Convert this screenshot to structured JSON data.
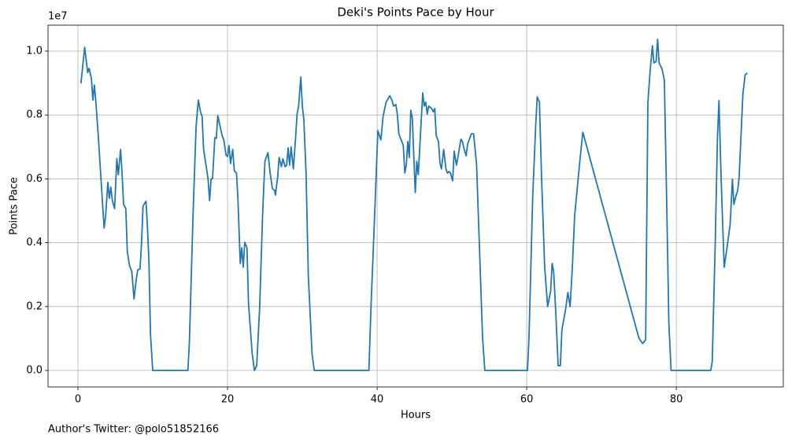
{
  "chart_data": {
    "type": "line",
    "title": "Deki's Points Pace by Hour",
    "x_label": "Hours",
    "y_label": "Points Pace",
    "y_offset_label": "1e7",
    "footnote": "Author's Twitter: @polo51852166",
    "color": "#1f77b4",
    "grid": true,
    "xlim": [
      -4,
      94.3
    ],
    "xticks": [
      0,
      20,
      40,
      60,
      80
    ],
    "ylim": [
      -517000,
      10813000
    ],
    "yticks": [
      {
        "value": 0,
        "label": "0.0"
      },
      {
        "value": 2000000,
        "label": "0.2"
      },
      {
        "value": 4000000,
        "label": "0.4"
      },
      {
        "value": 6000000,
        "label": "0.6"
      },
      {
        "value": 8000000,
        "label": "0.8"
      },
      {
        "value": 10000000,
        "label": "1.0"
      }
    ],
    "x": [
      0.4,
      0.9,
      1.3,
      1.5,
      1.8,
      2.0,
      2.2,
      2.4,
      2.7,
      3.3,
      3.5,
      3.7,
      4.0,
      4.2,
      4.4,
      4.6,
      4.9,
      5.2,
      5.4,
      5.7,
      5.9,
      6.1,
      6.4,
      6.6,
      6.9,
      7.2,
      7.5,
      7.8,
      8.0,
      8.3,
      8.5,
      8.7,
      9.1,
      9.3,
      9.5,
      9.7,
      10.0,
      14.7,
      14.9,
      15.4,
      15.8,
      16.1,
      16.4,
      16.6,
      16.8,
      17.2,
      17.4,
      17.6,
      17.8,
      18.0,
      18.3,
      18.5,
      18.7,
      19.1,
      19.3,
      19.5,
      19.8,
      20.0,
      20.2,
      20.4,
      20.7,
      20.9,
      21.2,
      21.4,
      21.7,
      21.9,
      22.1,
      22.3,
      22.6,
      22.8,
      23.3,
      23.6,
      23.9,
      24.3,
      24.7,
      25.0,
      25.4,
      25.7,
      26.0,
      26.3,
      26.4,
      26.7,
      26.9,
      27.2,
      27.4,
      27.7,
      27.9,
      28.1,
      28.3,
      28.5,
      28.8,
      29.1,
      29.3,
      29.5,
      29.8,
      30.0,
      30.2,
      30.5,
      30.8,
      31.3,
      31.6,
      38.9,
      39.2,
      39.6,
      40.1,
      40.5,
      40.8,
      41.2,
      41.7,
      42.0,
      42.2,
      42.5,
      42.7,
      42.9,
      43.3,
      43.5,
      43.7,
      43.9,
      44.1,
      44.3,
      44.5,
      44.7,
      45.1,
      45.3,
      45.5,
      45.8,
      46.1,
      46.3,
      46.5,
      46.7,
      46.9,
      47.3,
      47.5,
      47.7,
      47.9,
      48.2,
      48.4,
      48.6,
      48.9,
      49.2,
      49.4,
      49.6,
      49.8,
      50.1,
      50.3,
      50.6,
      50.8,
      51.2,
      51.4,
      51.6,
      51.9,
      52.1,
      52.3,
      52.6,
      52.9,
      53.3,
      53.7,
      54.1,
      54.4,
      60.1,
      60.3,
      60.8,
      61.2,
      61.4,
      61.7,
      62.0,
      62.4,
      62.8,
      63.2,
      63.4,
      63.6,
      63.9,
      64.2,
      64.5,
      64.7,
      65.2,
      65.5,
      65.8,
      66.1,
      66.4,
      66.7,
      67.1,
      67.5,
      75.0,
      75.5,
      75.9,
      76.2,
      76.5,
      76.8,
      77.0,
      77.3,
      77.5,
      77.7,
      78.1,
      78.4,
      78.7,
      79.0,
      79.3,
      84.6,
      84.8,
      85.2,
      85.5,
      85.7,
      86.0,
      86.4,
      86.7,
      87.2,
      87.5,
      87.7,
      88.0,
      88.2,
      88.4,
      88.9,
      89.2,
      89.5
    ],
    "values": [
      8990000,
      10120000,
      9330000,
      9460000,
      9140000,
      8470000,
      8940000,
      8400000,
      7410000,
      5200000,
      4460000,
      4830000,
      5890000,
      5390000,
      5740000,
      5320000,
      5070000,
      6630000,
      6130000,
      6920000,
      6180000,
      5200000,
      5070000,
      3720000,
      3280000,
      3100000,
      2240000,
      2860000,
      3150000,
      3180000,
      3970000,
      5150000,
      5300000,
      4460000,
      3350000,
      1130000,
      0,
      0,
      890000,
      4950000,
      7660000,
      8470000,
      8080000,
      7960000,
      6920000,
      6310000,
      5990000,
      5320000,
      5990000,
      6010000,
      7290000,
      7270000,
      7980000,
      7540000,
      7340000,
      7220000,
      6750000,
      6700000,
      7040000,
      6480000,
      6920000,
      6260000,
      6180000,
      5320000,
      3350000,
      3840000,
      3230000,
      4010000,
      3840000,
      2120000,
      520000,
      0,
      150000,
      2000000,
      4950000,
      6550000,
      6820000,
      6180000,
      5690000,
      5640000,
      5490000,
      6060000,
      6670000,
      6380000,
      6630000,
      6380000,
      6430000,
      6970000,
      6430000,
      7000000,
      6310000,
      7290000,
      8030000,
      8280000,
      9190000,
      8280000,
      7860000,
      6180000,
      2980000,
      520000,
      0,
      0,
      2120000,
      4460000,
      7510000,
      7220000,
      7960000,
      8400000,
      8600000,
      8450000,
      8280000,
      8330000,
      8030000,
      7410000,
      7170000,
      7040000,
      6180000,
      6430000,
      7170000,
      6670000,
      8150000,
      7910000,
      5570000,
      6550000,
      6130000,
      7410000,
      8690000,
      8280000,
      8400000,
      8030000,
      8280000,
      8200000,
      8100000,
      8200000,
      7360000,
      7170000,
      6500000,
      6310000,
      6920000,
      6310000,
      6180000,
      6230000,
      6180000,
      5940000,
      6870000,
      6430000,
      6670000,
      7240000,
      7170000,
      6970000,
      6720000,
      7090000,
      7220000,
      7410000,
      7410000,
      6430000,
      3720000,
      1010000,
      0,
      0,
      1010000,
      5440000,
      7660000,
      8570000,
      8400000,
      5940000,
      3230000,
      2000000,
      2490000,
      3350000,
      3100000,
      1750000,
      150000,
      150000,
      1260000,
      1920000,
      2440000,
      2000000,
      3230000,
      4830000,
      5570000,
      6550000,
      7460000,
      1010000,
      840000,
      960000,
      8400000,
      9380000,
      10170000,
      9630000,
      9680000,
      10370000,
      9630000,
      9430000,
      9090000,
      5440000,
      1500000,
      0,
      0,
      270000,
      3970000,
      7290000,
      8450000,
      5940000,
      3230000,
      3720000,
      4580000,
      5990000,
      5200000,
      5490000,
      5620000,
      6060000,
      8650000,
      9260000,
      9310000
    ]
  }
}
